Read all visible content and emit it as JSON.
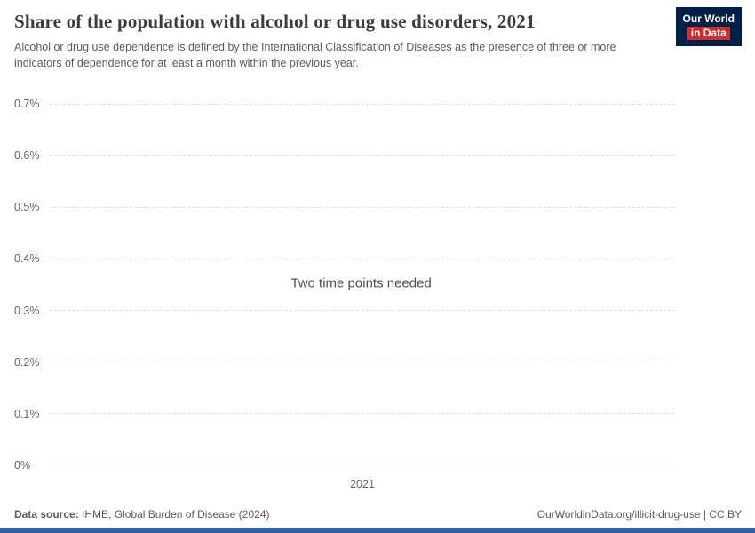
{
  "header": {
    "title": "Share of the population with alcohol or drug use disorders, 2021",
    "subtitle": "Alcohol or drug use dependence is defined by the International Classification of Diseases as the presence of three or more indicators of dependence for at least a month within the previous year.",
    "logo": {
      "line1": "Our World",
      "line2": "in Data"
    }
  },
  "chart_data": {
    "type": "line",
    "title": "Share of the population with alcohol or drug use disorders, 2021",
    "xlabel": "",
    "ylabel": "",
    "ylim": [
      0,
      0.7
    ],
    "y_unit": "%",
    "yticks": [
      "0.7%",
      "0.6%",
      "0.5%",
      "0.4%",
      "0.3%",
      "0.2%",
      "0.1%",
      "0%"
    ],
    "xticks": [
      "2021"
    ],
    "series": [],
    "message": "Two time points needed",
    "grid": "horizontal-dashed",
    "legend_position": "none"
  },
  "footer": {
    "datasource_label": "Data source:",
    "datasource_value": "IHME, Global Burden of Disease (2024)",
    "credit": "OurWorldinData.org/illicit-drug-use | CC BY"
  },
  "colors": {
    "logo_bg": "#002147",
    "logo_accent": "#d42b2b",
    "timeline_bar": "#3360a9",
    "gridline": "#dedede",
    "axis_line": "#a0a0a0",
    "title_text": "#383d41",
    "muted_text": "#5b5b5b"
  }
}
